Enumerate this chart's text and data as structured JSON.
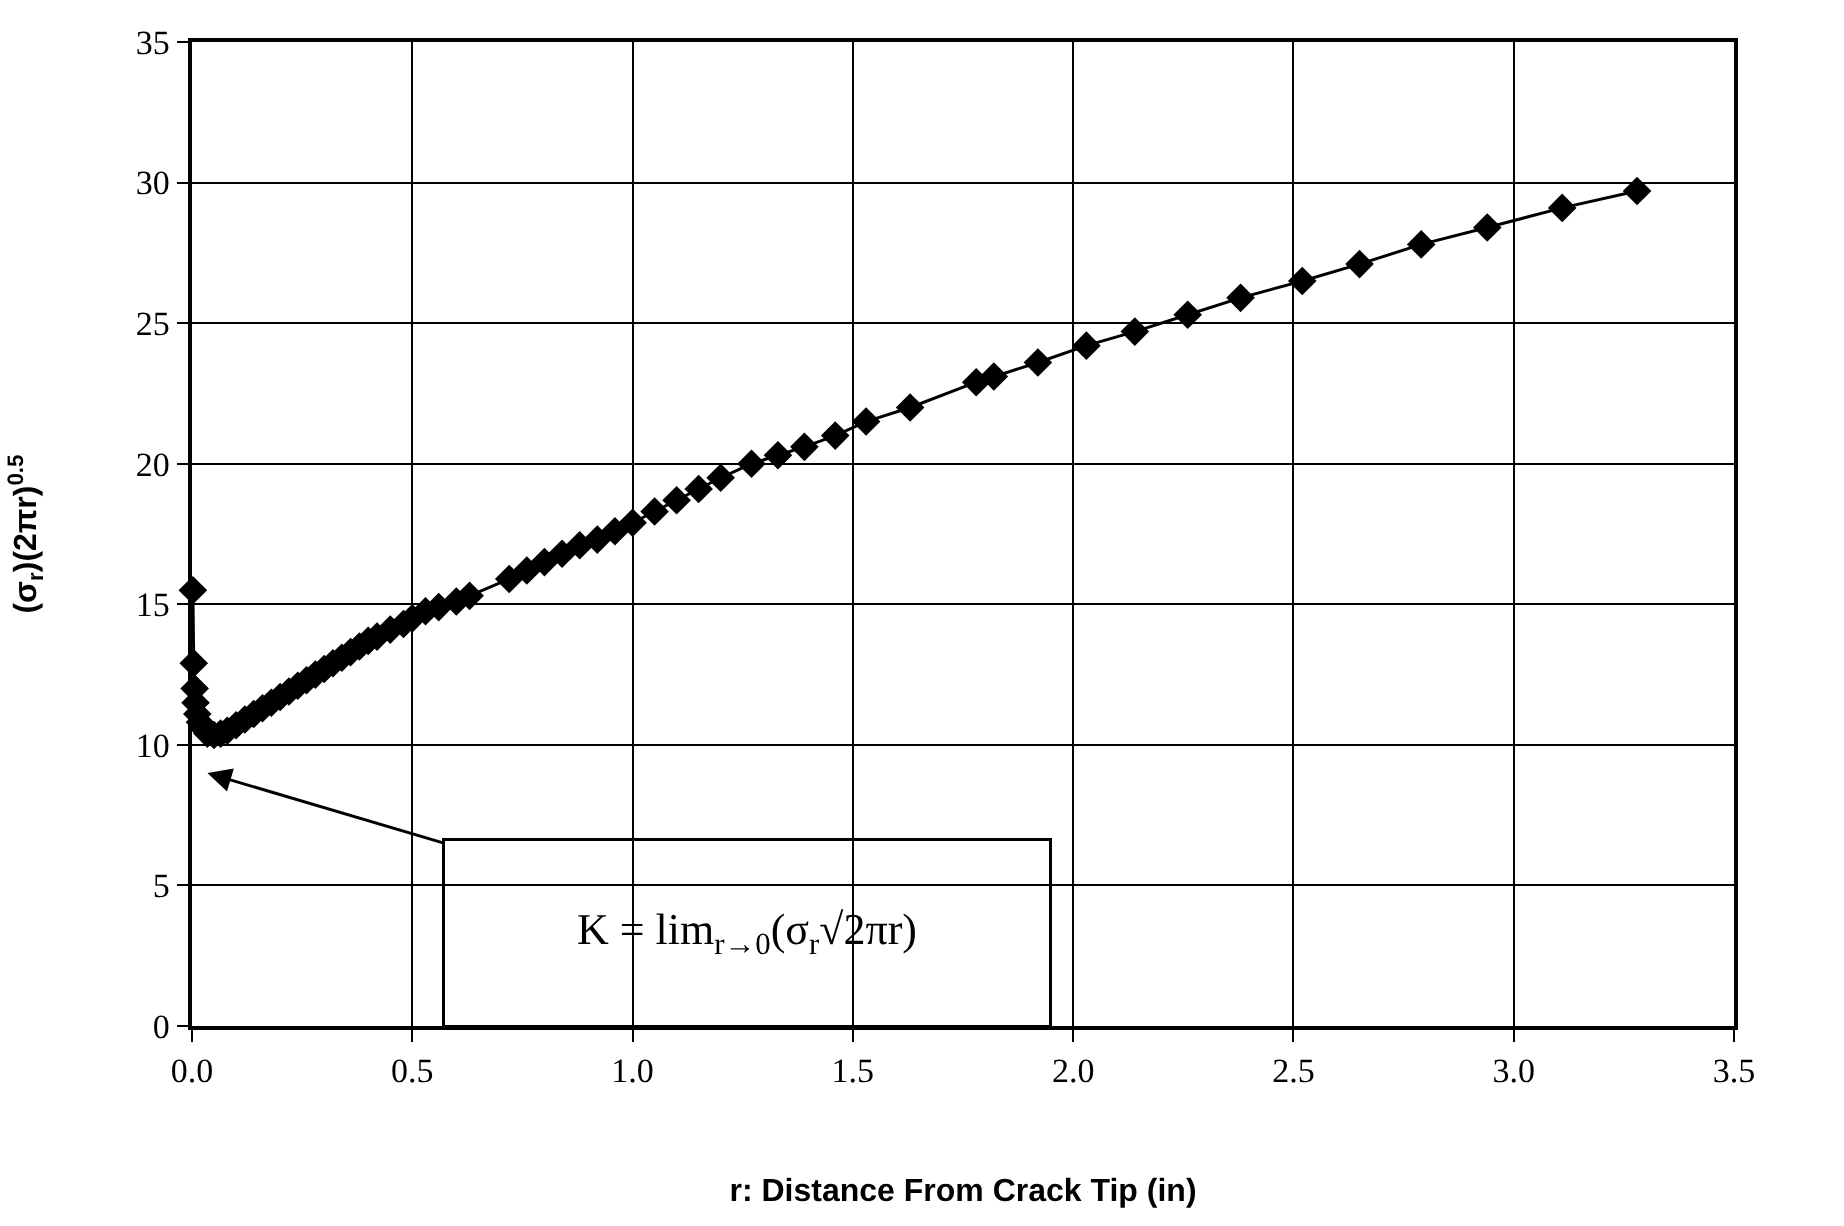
{
  "chart_data": {
    "type": "line",
    "xlabel": "r: Distance From Crack Tip (in)",
    "ylabel": "(σ$_{r}$)(2πr)$^{0.5}$",
    "x": [
      0.002,
      0.004,
      0.006,
      0.008,
      0.012,
      0.018,
      0.025,
      0.035,
      0.05,
      0.065,
      0.08,
      0.1,
      0.12,
      0.14,
      0.16,
      0.18,
      0.2,
      0.22,
      0.24,
      0.26,
      0.28,
      0.3,
      0.32,
      0.34,
      0.36,
      0.38,
      0.4,
      0.42,
      0.45,
      0.48,
      0.5,
      0.53,
      0.56,
      0.6,
      0.63,
      0.72,
      0.76,
      0.8,
      0.84,
      0.88,
      0.92,
      0.96,
      1.0,
      1.05,
      1.1,
      1.15,
      1.2,
      1.27,
      1.33,
      1.39,
      1.46,
      1.53,
      1.63,
      1.78,
      1.82,
      1.92,
      2.03,
      2.14,
      2.26,
      2.38,
      2.52,
      2.65,
      2.79,
      2.94,
      3.11,
      3.28
    ],
    "series": [
      {
        "color": "#000000",
        "values": [
          15.5,
          12.9,
          12.0,
          11.5,
          11.1,
          10.8,
          10.6,
          10.4,
          10.35,
          10.4,
          10.5,
          10.7,
          10.9,
          11.1,
          11.3,
          11.5,
          11.7,
          11.9,
          12.1,
          12.3,
          12.5,
          12.7,
          12.9,
          13.1,
          13.3,
          13.5,
          13.7,
          13.85,
          14.1,
          14.3,
          14.5,
          14.75,
          14.9,
          15.1,
          15.3,
          15.9,
          16.2,
          16.5,
          16.8,
          17.1,
          17.3,
          17.6,
          17.9,
          18.3,
          18.7,
          19.1,
          19.5,
          20.0,
          20.3,
          20.6,
          21.0,
          21.5,
          22.0,
          22.9,
          23.1,
          23.6,
          24.2,
          24.7,
          25.3,
          25.9,
          26.5,
          27.1,
          27.8,
          28.4,
          29.1,
          29.7
        ]
      }
    ],
    "xlim": [
      0,
      3.5
    ],
    "xticks": [
      {
        "value": 0,
        "label": "0.0"
      },
      0.5,
      {
        "value": 1,
        "label": "1.0"
      },
      1.5,
      {
        "value": 2,
        "label": "2.0"
      },
      2.5,
      {
        "value": 3,
        "label": "3.0"
      },
      3.5
    ],
    "ylim": [
      0,
      35
    ],
    "yticks": [
      0,
      5,
      10,
      15,
      20,
      25,
      30,
      35
    ],
    "annotations": [
      "K = lim$_{r→0}$(σ$_{r}$√2πr)"
    ],
    "grid": true,
    "marker": "diamond",
    "line_style": "solid"
  }
}
